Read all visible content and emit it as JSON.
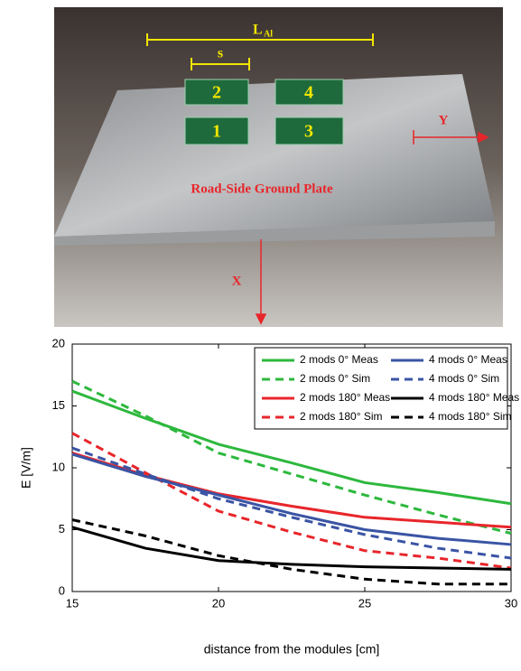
{
  "photo": {
    "length_label": "L",
    "length_subscript": "Al",
    "spacing_label": "s",
    "module_labels": [
      "2",
      "4",
      "1",
      "3"
    ],
    "y_axis_label": "Y",
    "plate_label": "Road-Side Ground Plate",
    "x_axis_label": "X"
  },
  "chart_data": {
    "type": "line",
    "x_label": "distance from the modules [cm]",
    "y_label": "E [V/m]",
    "x": [
      15,
      17.5,
      20,
      22.5,
      25,
      27.5,
      30
    ],
    "xlim": [
      15,
      30
    ],
    "xticks": [
      15,
      20,
      25,
      30
    ],
    "ylim": [
      0,
      20
    ],
    "yticks": [
      0,
      5,
      10,
      15,
      20
    ],
    "legend": "upper right",
    "series": [
      {
        "name": "2 mods 0° Meas",
        "color": "#2db83d",
        "dash": false,
        "values": [
          16.2,
          14,
          11.9,
          10.4,
          8.8,
          8.0,
          7.1
        ]
      },
      {
        "name": "2 mods 0° Sim",
        "color": "#2db83d",
        "dash": true,
        "values": [
          17,
          14.2,
          11.2,
          9.5,
          7.8,
          6.2,
          4.7
        ]
      },
      {
        "name": "2 mods 180° Meas",
        "color": "#e8262b",
        "dash": false,
        "values": [
          11.2,
          9.4,
          7.9,
          6.9,
          6.0,
          5.6,
          5.2
        ]
      },
      {
        "name": "2 mods 180° Sim",
        "color": "#e8262b",
        "dash": true,
        "values": [
          12.8,
          9.6,
          6.5,
          4.8,
          3.3,
          2.7,
          1.9
        ]
      },
      {
        "name": "4 mods 0° Meas",
        "color": "#3a54a4",
        "dash": false,
        "values": [
          11.1,
          9.3,
          7.8,
          6.3,
          5.0,
          4.3,
          3.8
        ]
      },
      {
        "name": "4 mods 0° Sim",
        "color": "#3a54a4",
        "dash": true,
        "values": [
          11.6,
          9.5,
          7.5,
          6.0,
          4.6,
          3.5,
          2.7
        ]
      },
      {
        "name": "4 mods 180° Meas",
        "color": "#000000",
        "dash": false,
        "values": [
          5.2,
          3.5,
          2.5,
          2.2,
          2.0,
          1.9,
          1.8
        ]
      },
      {
        "name": "4 mods 180° Sim",
        "color": "#000000",
        "dash": true,
        "values": [
          5.8,
          4.5,
          2.9,
          1.8,
          1.0,
          0.6,
          0.6
        ]
      }
    ]
  }
}
